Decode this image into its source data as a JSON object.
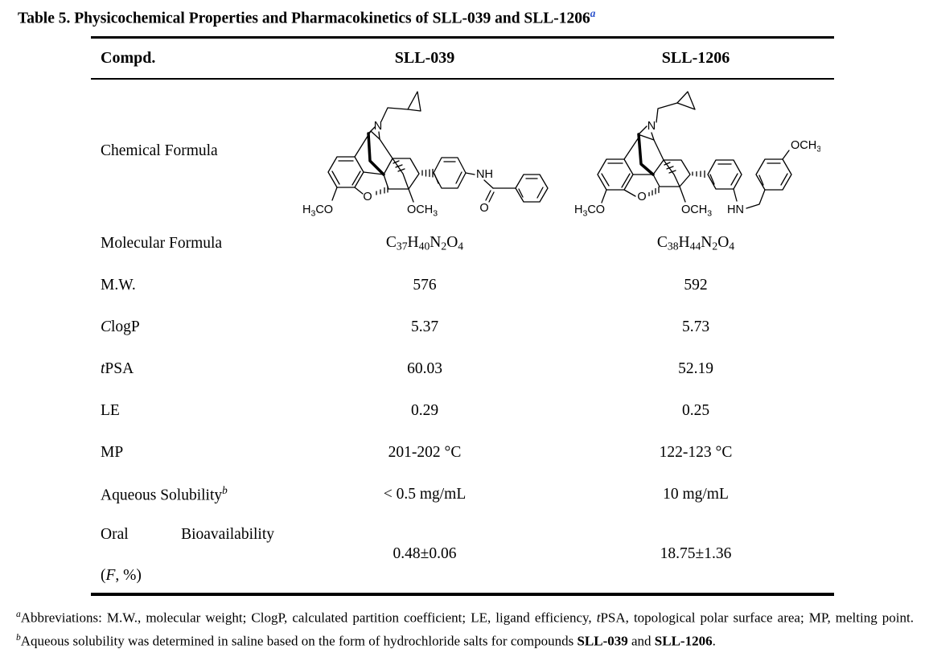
{
  "title_segments": [
    {
      "t": "Table 5. Physicochemical Properties and Pharmacokinetics of SLL-039 and SLL-1206"
    },
    {
      "t": "a",
      "k": "sup i blue"
    }
  ],
  "table": {
    "header": {
      "compd": "Compd.",
      "sll039": "SLL-039",
      "sll1206": "SLL-1206"
    },
    "rows": {
      "chemical": {
        "label": "Chemical Formula"
      },
      "molecular": {
        "label": "Molecular Formula",
        "v1": [
          {
            "t": "C"
          },
          {
            "t": "37",
            "k": "sub"
          },
          {
            "t": "H"
          },
          {
            "t": "40",
            "k": "sub"
          },
          {
            "t": "N"
          },
          {
            "t": "2",
            "k": "sub"
          },
          {
            "t": "O"
          },
          {
            "t": "4",
            "k": "sub"
          }
        ],
        "v2": [
          {
            "t": "C"
          },
          {
            "t": "38",
            "k": "sub"
          },
          {
            "t": "H"
          },
          {
            "t": "44",
            "k": "sub"
          },
          {
            "t": "N"
          },
          {
            "t": "2",
            "k": "sub"
          },
          {
            "t": "O"
          },
          {
            "t": "4",
            "k": "sub"
          }
        ]
      },
      "mw": {
        "label": "M.W.",
        "v1": "576",
        "v2": "592"
      },
      "clogp": {
        "label": [
          {
            "t": "C",
            "k": "i"
          },
          {
            "t": "logP"
          }
        ],
        "v1": "5.37",
        "v2": "5.73"
      },
      "tpsa": {
        "label": [
          {
            "t": "t",
            "k": "i"
          },
          {
            "t": "PSA"
          }
        ],
        "v1": "60.03",
        "v2": "52.19"
      },
      "le": {
        "label": "LE",
        "v1": "0.29",
        "v2": "0.25"
      },
      "mp": {
        "label": "MP",
        "v1": "201-202 °C",
        "v2": "122-123 °C"
      },
      "solubility": {
        "label": [
          {
            "t": "Aqueous Solubility"
          },
          {
            "t": "b",
            "k": "sup i"
          }
        ],
        "v1": "< 0.5 mg/mL",
        "v2": "10 mg/mL"
      },
      "oral": {
        "label_word1": "Oral",
        "label_word2": "Bioavailability",
        "label_line2": [
          {
            "t": "("
          },
          {
            "t": "F",
            "k": "i"
          },
          {
            "t": ", %)"
          }
        ],
        "v1": "0.48±0.06",
        "v2": "18.75±1.36"
      }
    }
  },
  "structures": {
    "sll039": {
      "n": "N",
      "nh": "NH",
      "carbonyl_o": "O",
      "furan_o": "O",
      "h3co": [
        {
          "t": "H"
        },
        {
          "t": "3",
          "k": "sub"
        },
        {
          "t": "CO"
        }
      ],
      "och3": [
        {
          "t": "OCH"
        },
        {
          "t": "3",
          "k": "sub"
        }
      ]
    },
    "sll1206": {
      "n": "N",
      "hn": "HN",
      "furan_o": "O",
      "h3co": [
        {
          "t": "H"
        },
        {
          "t": "3",
          "k": "sub"
        }
      ],
      "h3co_rest": "CO",
      "och3_bottom": [
        {
          "t": "OCH"
        },
        {
          "t": "3",
          "k": "sub"
        }
      ],
      "och3_top": [
        {
          "t": "OCH"
        },
        {
          "t": "3",
          "k": "sub"
        }
      ]
    }
  },
  "footnote_segments": [
    {
      "t": "a",
      "k": "sup i"
    },
    {
      "t": "Abbreviations: M.W., molecular weight; ClogP, calculated partition coefficient; LE, ligand efficiency, "
    },
    {
      "t": "t",
      "k": "i"
    },
    {
      "t": "PSA, topological polar surface area; MP, melting point. "
    },
    {
      "t": "b",
      "k": "sup i"
    },
    {
      "t": "Aqueous solubility was determined in saline based on the form of hydrochloride salts for compounds "
    },
    {
      "t": "SLL-039",
      "k": "b"
    },
    {
      "t": " and "
    },
    {
      "t": "SLL-1206",
      "k": "b"
    },
    {
      "t": "."
    }
  ]
}
